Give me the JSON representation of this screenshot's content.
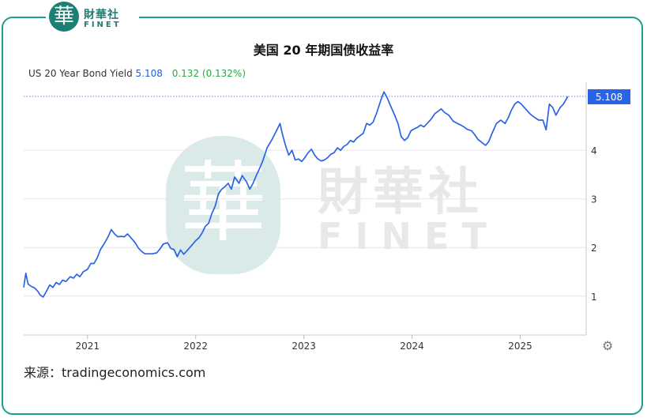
{
  "brand": {
    "logo_text_cn": "財華社",
    "logo_text_en": "FINET",
    "logo_glyph": "華"
  },
  "title": "美国 20 年期国债收益率",
  "series_header": {
    "name": "US 20 Year Bond Yield",
    "last": "5.108",
    "change": "0.132 (0.132%)"
  },
  "source": "来源：tradingeconomics.com",
  "settings_icon": "gear-icon",
  "colors": {
    "line": "#2a62e8",
    "accent": "#1f9e8f",
    "last_label_bg": "#2a62e8",
    "change": "#27a844"
  },
  "chart_data": {
    "type": "line",
    "title": "美国 20 年期国债收益率",
    "xlabel": "",
    "ylabel": "",
    "x_ticks": [
      "2021",
      "2022",
      "2023",
      "2024",
      "2025"
    ],
    "y_ticks": [
      1,
      2,
      3,
      4
    ],
    "ylim": [
      0.2,
      5.4
    ],
    "xlim": [
      2020.41,
      2025.61
    ],
    "grid": true,
    "reference_line": 5.108,
    "last_value_label": "5.108",
    "series": [
      {
        "values": [
          [
            2020.41,
            1.18
          ],
          [
            2020.43,
            1.47
          ],
          [
            2020.45,
            1.25
          ],
          [
            2020.48,
            1.2
          ],
          [
            2020.51,
            1.17
          ],
          [
            2020.54,
            1.1
          ],
          [
            2020.56,
            1.03
          ],
          [
            2020.59,
            0.98
          ],
          [
            2020.62,
            1.1
          ],
          [
            2020.65,
            1.23
          ],
          [
            2020.68,
            1.18
          ],
          [
            2020.71,
            1.28
          ],
          [
            2020.74,
            1.24
          ],
          [
            2020.77,
            1.33
          ],
          [
            2020.8,
            1.3
          ],
          [
            2020.84,
            1.4
          ],
          [
            2020.87,
            1.37
          ],
          [
            2020.9,
            1.45
          ],
          [
            2020.93,
            1.4
          ],
          [
            2020.96,
            1.5
          ],
          [
            2021.0,
            1.55
          ],
          [
            2021.03,
            1.67
          ],
          [
            2021.06,
            1.67
          ],
          [
            2021.09,
            1.79
          ],
          [
            2021.12,
            1.96
          ],
          [
            2021.16,
            2.1
          ],
          [
            2021.19,
            2.22
          ],
          [
            2021.22,
            2.37
          ],
          [
            2021.25,
            2.28
          ],
          [
            2021.28,
            2.22
          ],
          [
            2021.31,
            2.23
          ],
          [
            2021.34,
            2.22
          ],
          [
            2021.37,
            2.28
          ],
          [
            2021.41,
            2.18
          ],
          [
            2021.44,
            2.1
          ],
          [
            2021.47,
            1.99
          ],
          [
            2021.5,
            1.92
          ],
          [
            2021.53,
            1.87
          ],
          [
            2021.57,
            1.87
          ],
          [
            2021.6,
            1.87
          ],
          [
            2021.64,
            1.89
          ],
          [
            2021.67,
            1.97
          ],
          [
            2021.7,
            2.07
          ],
          [
            2021.74,
            2.1
          ],
          [
            2021.77,
            1.98
          ],
          [
            2021.8,
            1.96
          ],
          [
            2021.83,
            1.81
          ],
          [
            2021.86,
            1.95
          ],
          [
            2021.89,
            1.86
          ],
          [
            2021.93,
            1.96
          ],
          [
            2021.97,
            2.06
          ],
          [
            2022.0,
            2.14
          ],
          [
            2022.03,
            2.2
          ],
          [
            2022.06,
            2.3
          ],
          [
            2022.09,
            2.44
          ],
          [
            2022.12,
            2.5
          ],
          [
            2022.15,
            2.7
          ],
          [
            2022.18,
            2.85
          ],
          [
            2022.21,
            3.1
          ],
          [
            2022.24,
            3.2
          ],
          [
            2022.27,
            3.25
          ],
          [
            2022.3,
            3.32
          ],
          [
            2022.33,
            3.2
          ],
          [
            2022.36,
            3.45
          ],
          [
            2022.4,
            3.32
          ],
          [
            2022.43,
            3.48
          ],
          [
            2022.47,
            3.35
          ],
          [
            2022.5,
            3.2
          ],
          [
            2022.53,
            3.32
          ],
          [
            2022.56,
            3.48
          ],
          [
            2022.59,
            3.62
          ],
          [
            2022.62,
            3.78
          ],
          [
            2022.66,
            4.05
          ],
          [
            2022.7,
            4.2
          ],
          [
            2022.74,
            4.37
          ],
          [
            2022.78,
            4.55
          ],
          [
            2022.8,
            4.35
          ],
          [
            2022.83,
            4.1
          ],
          [
            2022.86,
            3.9
          ],
          [
            2022.89,
            4.0
          ],
          [
            2022.92,
            3.8
          ],
          [
            2022.95,
            3.82
          ],
          [
            2022.98,
            3.77
          ],
          [
            2023.01,
            3.85
          ],
          [
            2023.04,
            3.95
          ],
          [
            2023.07,
            4.02
          ],
          [
            2023.1,
            3.9
          ],
          [
            2023.13,
            3.82
          ],
          [
            2023.16,
            3.78
          ],
          [
            2023.19,
            3.8
          ],
          [
            2023.22,
            3.85
          ],
          [
            2023.25,
            3.92
          ],
          [
            2023.28,
            3.95
          ],
          [
            2023.31,
            4.05
          ],
          [
            2023.34,
            4.0
          ],
          [
            2023.37,
            4.08
          ],
          [
            2023.4,
            4.12
          ],
          [
            2023.43,
            4.2
          ],
          [
            2023.46,
            4.17
          ],
          [
            2023.49,
            4.25
          ],
          [
            2023.52,
            4.3
          ],
          [
            2023.55,
            4.35
          ],
          [
            2023.58,
            4.55
          ],
          [
            2023.61,
            4.52
          ],
          [
            2023.64,
            4.58
          ],
          [
            2023.67,
            4.75
          ],
          [
            2023.7,
            4.95
          ],
          [
            2023.72,
            5.08
          ],
          [
            2023.74,
            5.2
          ],
          [
            2023.77,
            5.08
          ],
          [
            2023.8,
            4.92
          ],
          [
            2023.84,
            4.72
          ],
          [
            2023.87,
            4.55
          ],
          [
            2023.9,
            4.28
          ],
          [
            2023.93,
            4.2
          ],
          [
            2023.96,
            4.26
          ],
          [
            2023.99,
            4.4
          ],
          [
            2024.02,
            4.44
          ],
          [
            2024.05,
            4.47
          ],
          [
            2024.08,
            4.52
          ],
          [
            2024.11,
            4.48
          ],
          [
            2024.14,
            4.55
          ],
          [
            2024.18,
            4.65
          ],
          [
            2024.21,
            4.75
          ],
          [
            2024.24,
            4.8
          ],
          [
            2024.27,
            4.85
          ],
          [
            2024.3,
            4.78
          ],
          [
            2024.34,
            4.72
          ],
          [
            2024.38,
            4.6
          ],
          [
            2024.42,
            4.55
          ],
          [
            2024.45,
            4.52
          ],
          [
            2024.48,
            4.48
          ],
          [
            2024.51,
            4.43
          ],
          [
            2024.55,
            4.4
          ],
          [
            2024.58,
            4.32
          ],
          [
            2024.61,
            4.22
          ],
          [
            2024.64,
            4.17
          ],
          [
            2024.68,
            4.1
          ],
          [
            2024.71,
            4.18
          ],
          [
            2024.74,
            4.35
          ],
          [
            2024.78,
            4.55
          ],
          [
            2024.82,
            4.62
          ],
          [
            2024.86,
            4.55
          ],
          [
            2024.89,
            4.67
          ],
          [
            2024.92,
            4.83
          ],
          [
            2024.95,
            4.95
          ],
          [
            2024.98,
            5.0
          ],
          [
            2025.01,
            4.95
          ],
          [
            2025.05,
            4.85
          ],
          [
            2025.09,
            4.75
          ],
          [
            2025.13,
            4.68
          ],
          [
            2025.17,
            4.62
          ],
          [
            2025.21,
            4.62
          ],
          [
            2025.24,
            4.42
          ],
          [
            2025.27,
            4.95
          ],
          [
            2025.3,
            4.88
          ],
          [
            2025.33,
            4.72
          ],
          [
            2025.37,
            4.88
          ],
          [
            2025.4,
            4.95
          ],
          [
            2025.44,
            5.108
          ]
        ]
      }
    ]
  }
}
